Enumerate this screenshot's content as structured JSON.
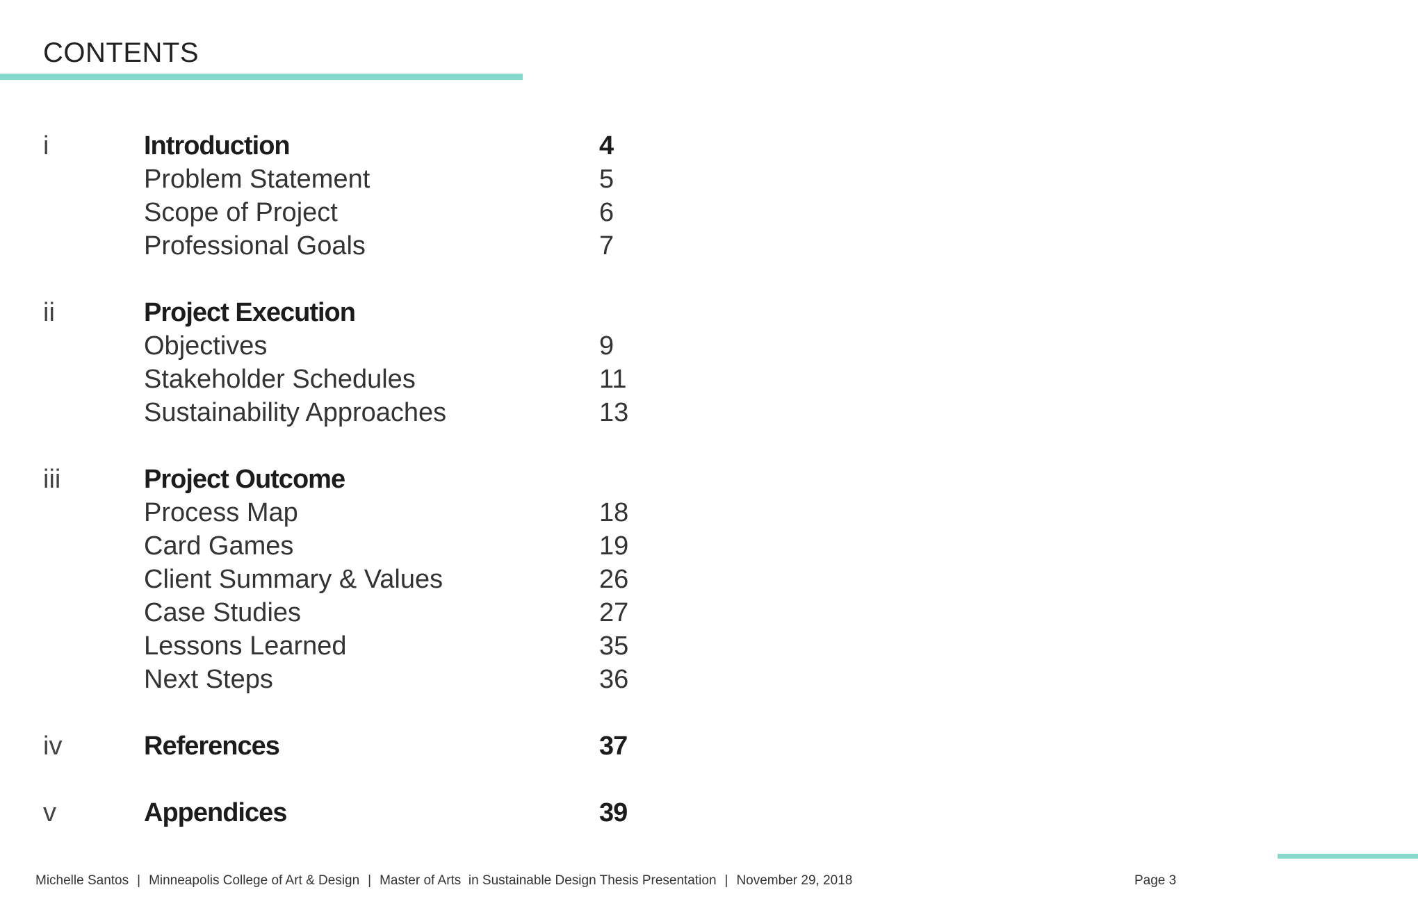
{
  "header": {
    "title": "CONTENTS"
  },
  "toc": {
    "sections": [
      {
        "numeral": "i",
        "title": "Introduction",
        "page": "4",
        "items": [
          {
            "label": "Problem Statement",
            "page": "5"
          },
          {
            "label": "Scope of Project",
            "page": "6"
          },
          {
            "label": "Professional Goals",
            "page": "7"
          }
        ]
      },
      {
        "numeral": "ii",
        "title": "Project Execution",
        "page": "",
        "items": [
          {
            "label": "Objectives",
            "page": "9"
          },
          {
            "label": "Stakeholder Schedules",
            "page": "11"
          },
          {
            "label": "Sustainability Approaches",
            "page": "13"
          }
        ]
      },
      {
        "numeral": "iii",
        "title": "Project Outcome",
        "page": "",
        "items": [
          {
            "label": "Process Map",
            "page": "18"
          },
          {
            "label": "Card Games",
            "page": "19"
          },
          {
            "label": "Client Summary & Values",
            "page": "26"
          },
          {
            "label": "Case Studies",
            "page": "27"
          },
          {
            "label": "Lessons Learned",
            "page": "35"
          },
          {
            "label": "Next Steps",
            "page": "36"
          }
        ]
      },
      {
        "numeral": "iv",
        "title": "References",
        "page": "37",
        "items": []
      },
      {
        "numeral": "v",
        "title": "Appendices",
        "page": "39",
        "items": []
      }
    ]
  },
  "footer": {
    "author": "Michelle Santos",
    "institution": "Minneapolis College of Art & Design",
    "program": "Master of Arts  in Sustainable Design Thesis Presentation",
    "date": "November 29, 2018",
    "separator": "|",
    "page_label": "Page 3"
  },
  "colors": {
    "accent": "#86d9cd",
    "text": "#222222"
  }
}
